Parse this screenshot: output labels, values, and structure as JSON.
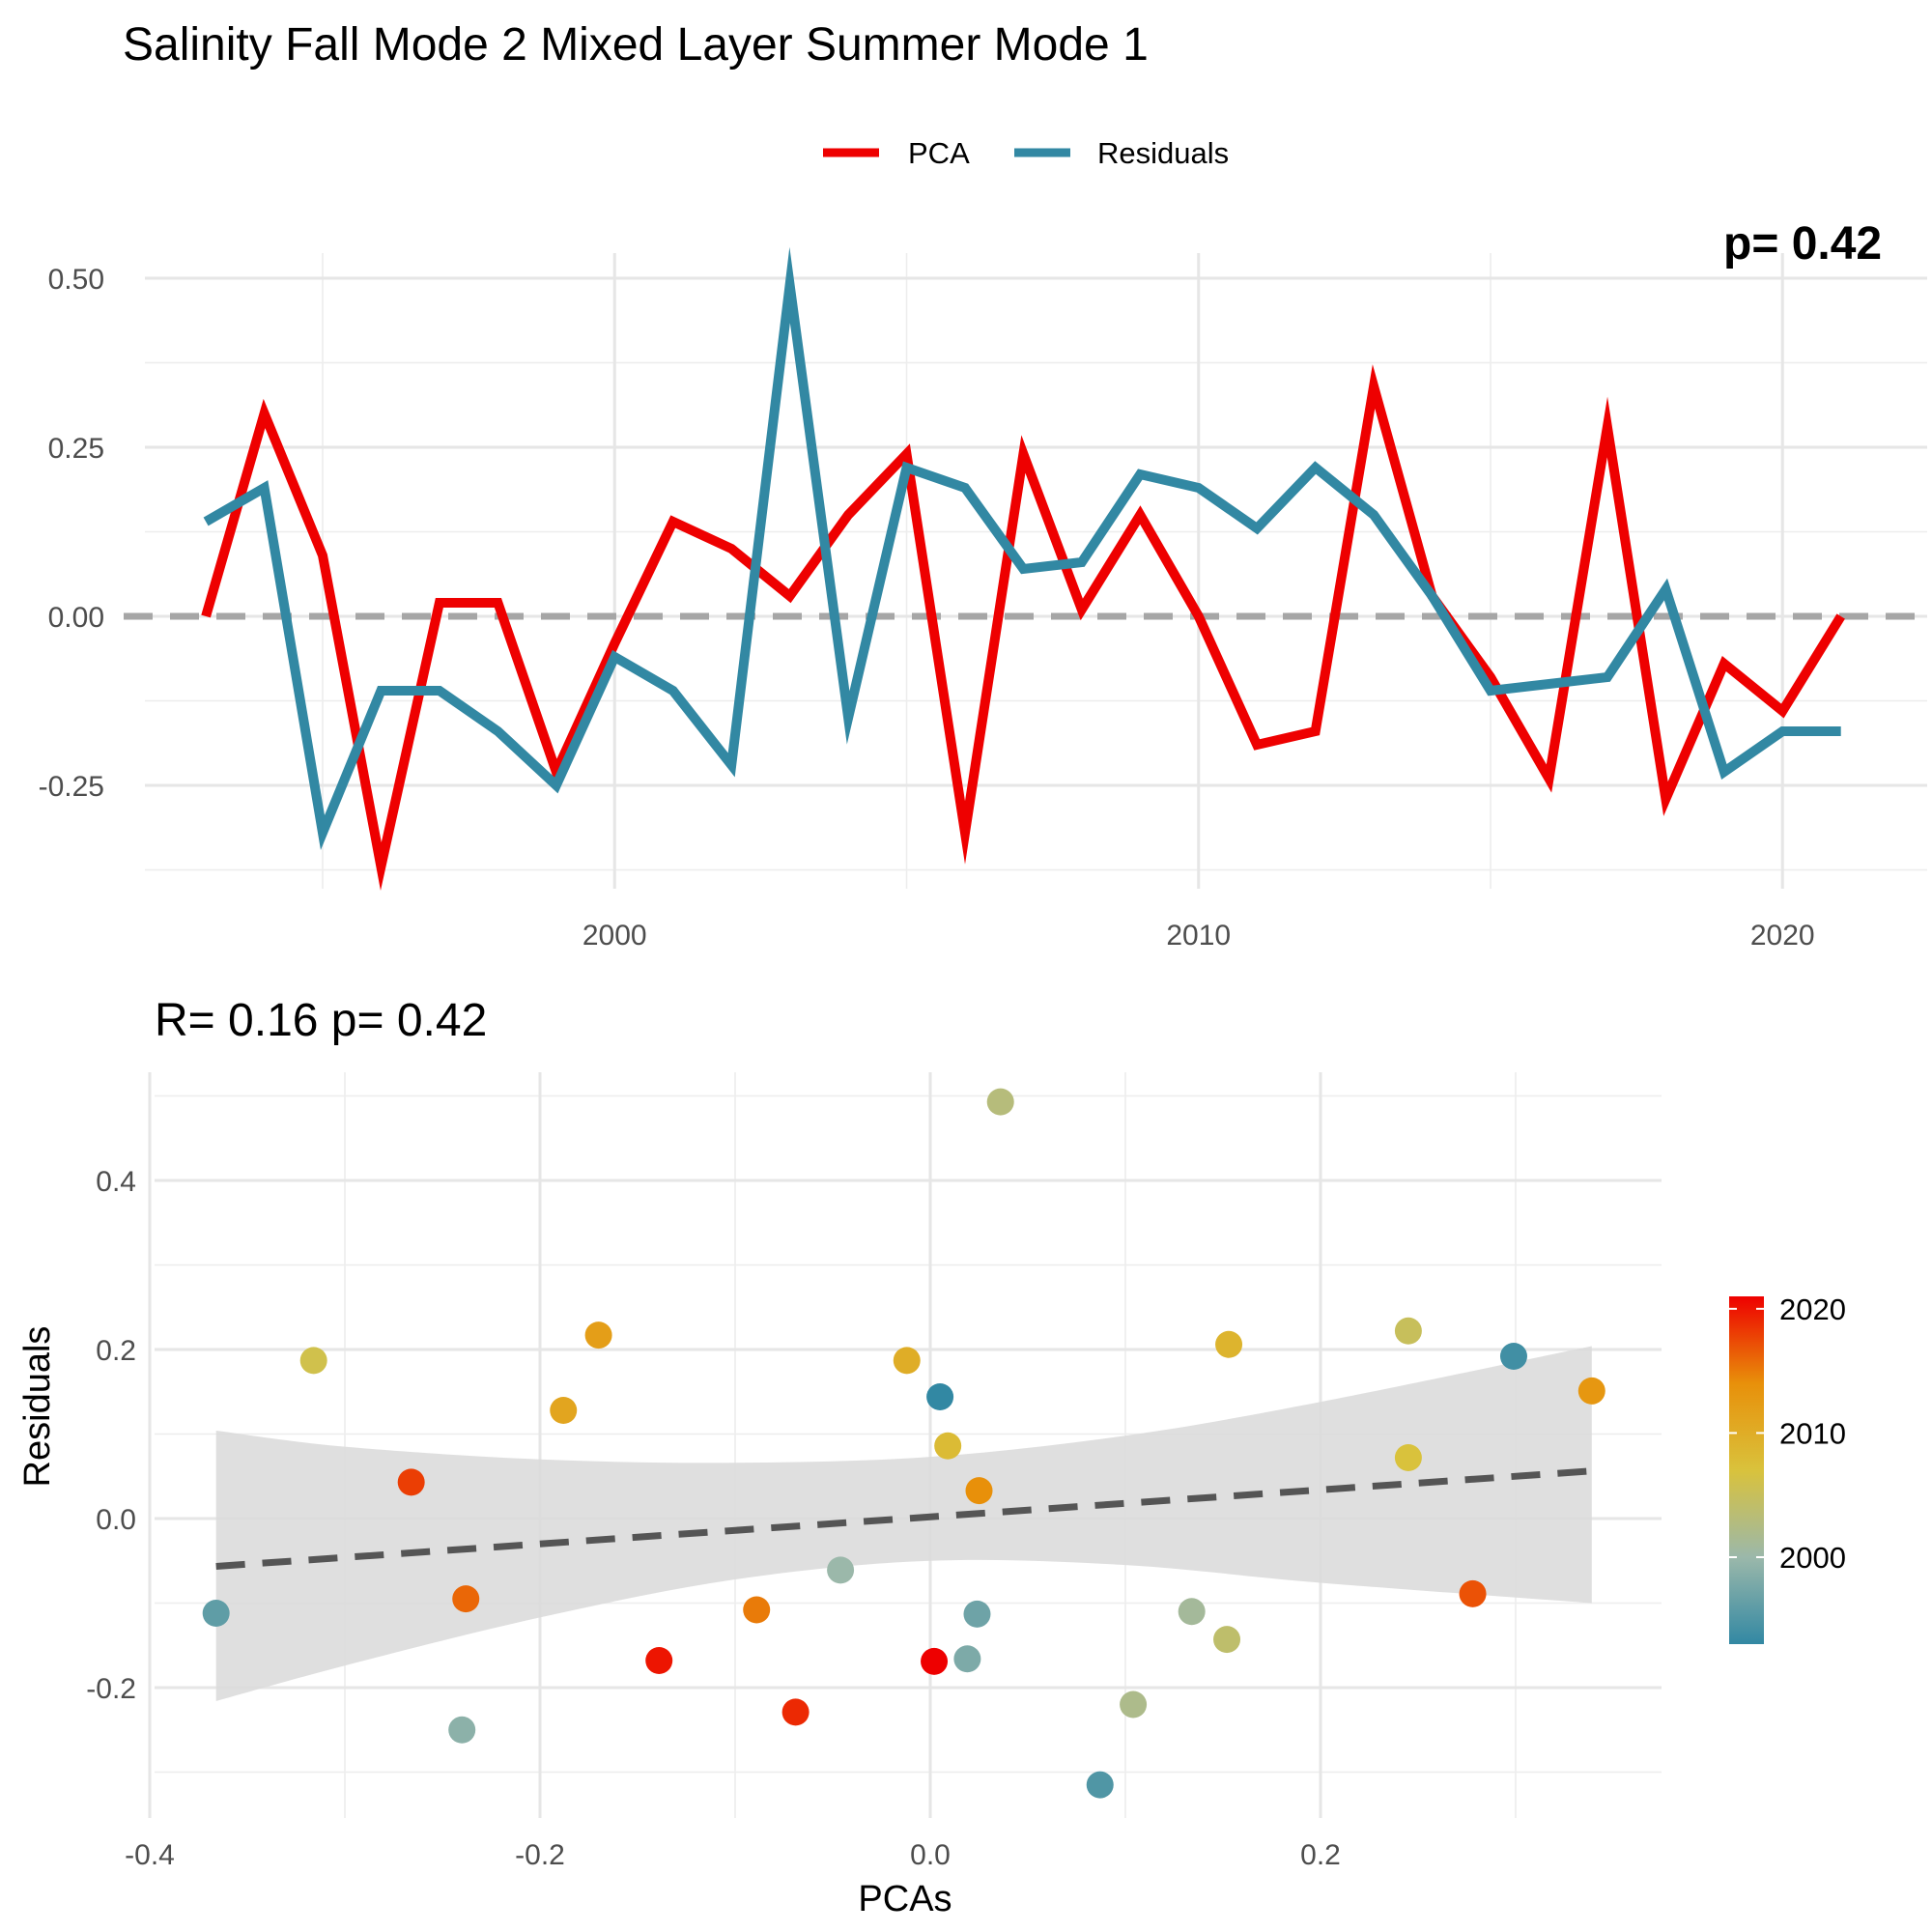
{
  "title": "Salinity Fall Mode 2 Mixed Layer Summer Mode 1",
  "colors": {
    "pca": "#ee0000",
    "residuals": "#3288a3",
    "zero_line": "#a6a6a6",
    "fit_line": "#555555",
    "ribbon": "#d9d9d9"
  },
  "chart_data": [
    {
      "type": "line",
      "legend": {
        "position": "top",
        "entries": [
          {
            "name": "PCA",
            "color": "#ee0000"
          },
          {
            "name": "Residuals",
            "color": "#3288a3"
          }
        ]
      },
      "x_ticks": [
        "2000",
        "2010",
        "2020"
      ],
      "y_ticks": [
        "0.50",
        "0.25",
        "0.00",
        "-0.25"
      ],
      "xlim": [
        1991.3,
        2022.3
      ],
      "ylim": [
        -0.38,
        0.52
      ],
      "grid": true,
      "zero_reference": 0,
      "corner_label": "p= 0.42",
      "x": [
        1993,
        1994,
        1995,
        1996,
        1997,
        1998,
        1999,
        2000,
        2001,
        2002,
        2003,
        2004,
        2005,
        2006,
        2007,
        2008,
        2009,
        2010,
        2011,
        2012,
        2013,
        2014,
        2015,
        2016,
        2017,
        2018,
        2019,
        2020,
        2021
      ],
      "series": [
        {
          "name": "PCA",
          "values": [
            0.0,
            0.3,
            0.09,
            -0.37,
            0.02,
            0.02,
            -0.23,
            -0.04,
            0.14,
            0.1,
            0.03,
            0.15,
            0.24,
            -0.32,
            0.24,
            0.01,
            0.15,
            0.0,
            -0.19,
            -0.17,
            0.34,
            0.03,
            -0.09,
            -0.24,
            0.28,
            -0.27,
            -0.07,
            -0.14,
            0.0
          ]
        },
        {
          "name": "Residuals",
          "values": [
            0.14,
            0.19,
            -0.32,
            -0.11,
            -0.11,
            -0.17,
            -0.25,
            -0.06,
            -0.11,
            -0.22,
            0.49,
            -0.15,
            0.22,
            0.19,
            0.07,
            0.08,
            0.21,
            0.19,
            0.13,
            0.22,
            0.15,
            0.03,
            -0.11,
            -0.1,
            -0.09,
            0.04,
            -0.23,
            -0.17,
            -0.17
          ]
        }
      ]
    },
    {
      "type": "scatter",
      "subtitle": "R= 0.16  p= 0.42",
      "xlabel": "PCAs",
      "ylabel": "Residuals",
      "x_ticks": [
        "-0.4",
        "-0.2",
        "0.0",
        "0.2"
      ],
      "y_ticks": [
        "0.4",
        "0.2",
        "0.0",
        "-0.2"
      ],
      "xlim": [
        -0.4,
        0.375
      ],
      "ylim": [
        -0.35,
        0.53
      ],
      "grid": true,
      "colorbar": {
        "labels": [
          "2020",
          "2010",
          "2000"
        ],
        "range": [
          1993,
          2021
        ]
      },
      "fit": {
        "intercept": 0.002,
        "slope": 0.16,
        "x_range": [
          -0.366,
          0.339
        ]
      },
      "confidence_band": [
        {
          "x": -0.366,
          "lo": -0.216,
          "hi": 0.104
        },
        {
          "x": -0.3,
          "lo": -0.174,
          "hi": 0.085
        },
        {
          "x": -0.2,
          "lo": -0.117,
          "hi": 0.07
        },
        {
          "x": -0.1,
          "lo": -0.072,
          "hi": 0.066
        },
        {
          "x": 0.0,
          "lo": -0.05,
          "hi": 0.073
        },
        {
          "x": 0.1,
          "lo": -0.055,
          "hi": 0.098
        },
        {
          "x": 0.2,
          "lo": -0.076,
          "hi": 0.138
        },
        {
          "x": 0.339,
          "lo": -0.1,
          "hi": 0.204
        }
      ],
      "points": [
        {
          "year": 1993,
          "x": 0.005,
          "y": 0.144
        },
        {
          "year": 1994,
          "x": 0.299,
          "y": 0.192
        },
        {
          "year": 1995,
          "x": 0.087,
          "y": -0.315
        },
        {
          "year": 1996,
          "x": -0.366,
          "y": -0.112
        },
        {
          "year": 1997,
          "x": 0.024,
          "y": -0.113
        },
        {
          "year": 1998,
          "x": 0.019,
          "y": -0.166
        },
        {
          "year": 1999,
          "x": -0.24,
          "y": -0.25
        },
        {
          "year": 2000,
          "x": -0.046,
          "y": -0.061
        },
        {
          "year": 2001,
          "x": 0.134,
          "y": -0.11
        },
        {
          "year": 2002,
          "x": 0.104,
          "y": -0.22
        },
        {
          "year": 2003,
          "x": 0.036,
          "y": 0.493
        },
        {
          "year": 2004,
          "x": 0.152,
          "y": -0.143
        },
        {
          "year": 2005,
          "x": 0.245,
          "y": 0.222
        },
        {
          "year": 2006,
          "x": -0.316,
          "y": 0.187
        },
        {
          "year": 2007,
          "x": 0.245,
          "y": 0.072
        },
        {
          "year": 2008,
          "x": 0.009,
          "y": 0.086
        },
        {
          "year": 2009,
          "x": 0.153,
          "y": 0.206
        },
        {
          "year": 2010,
          "x": -0.012,
          "y": 0.187
        },
        {
          "year": 2011,
          "x": -0.188,
          "y": 0.128
        },
        {
          "year": 2012,
          "x": -0.17,
          "y": 0.217
        },
        {
          "year": 2013,
          "x": 0.339,
          "y": 0.151
        },
        {
          "year": 2014,
          "x": 0.025,
          "y": 0.033
        },
        {
          "year": 2015,
          "x": -0.089,
          "y": -0.108
        },
        {
          "year": 2016,
          "x": -0.238,
          "y": -0.095
        },
        {
          "year": 2017,
          "x": 0.278,
          "y": -0.089
        },
        {
          "year": 2018,
          "x": -0.266,
          "y": 0.043
        },
        {
          "year": 2019,
          "x": -0.069,
          "y": -0.229
        },
        {
          "year": 2020,
          "x": -0.139,
          "y": -0.168
        },
        {
          "year": 2021,
          "x": 0.002,
          "y": -0.169
        }
      ]
    }
  ]
}
